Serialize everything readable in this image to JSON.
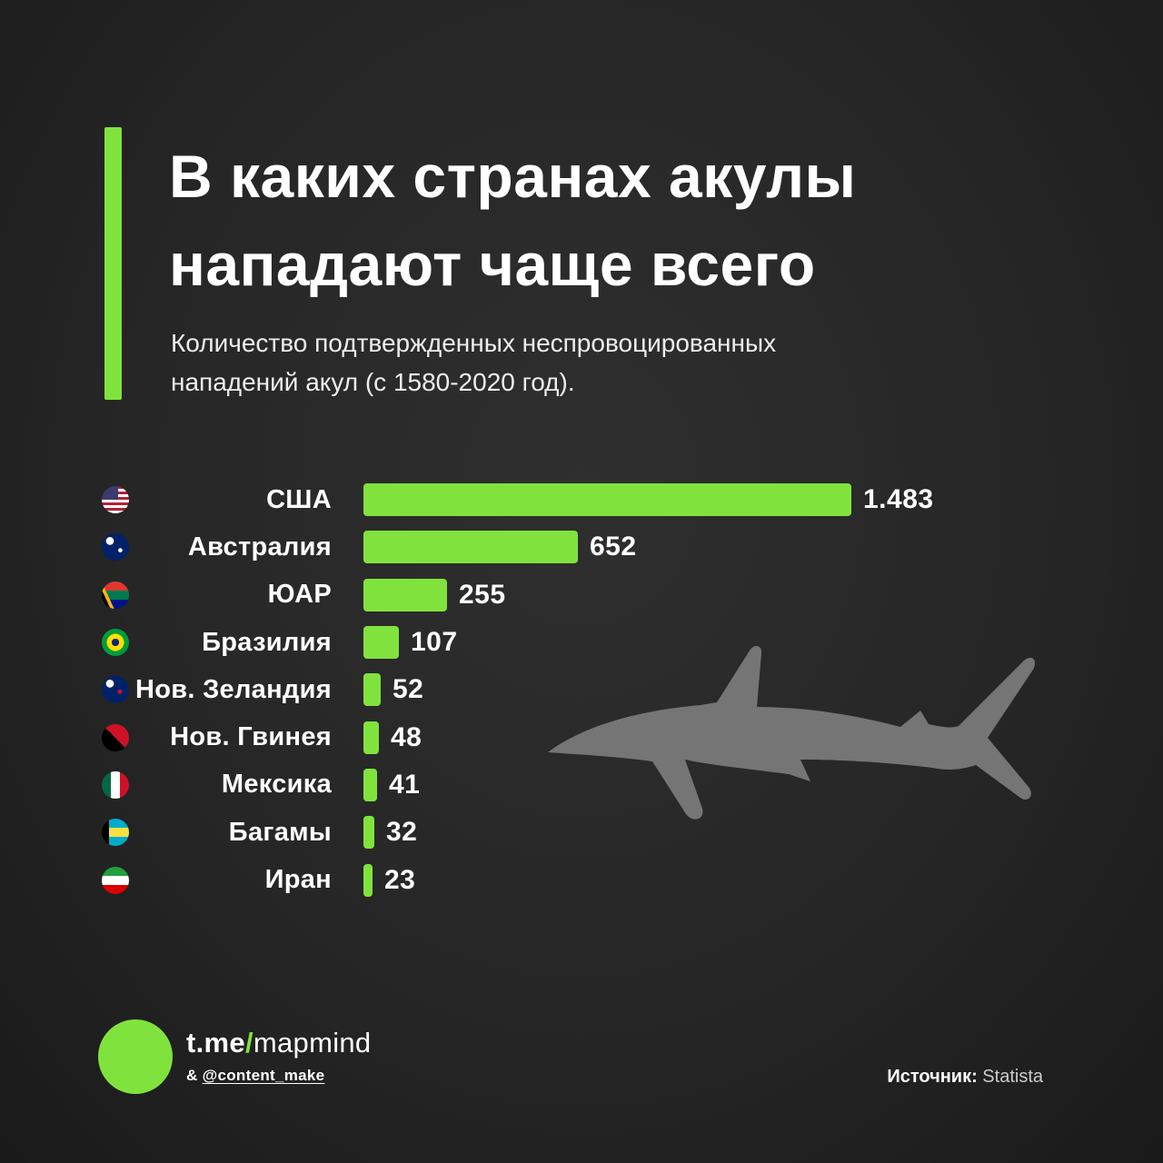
{
  "title": {
    "line1": "В каких странах акулы",
    "line2": "нападают чаще всего"
  },
  "subtitle": {
    "line1": "Количество подтвержденных неспровоцированных",
    "line2": "нападений акул (с 1580-2020 год)."
  },
  "chart_data": {
    "type": "bar",
    "orientation": "horizontal",
    "title": "В каких странах акулы нападают чаще всего",
    "subtitle": "Количество подтвержденных неспровоцированных нападений акул (с 1580-2020 год).",
    "categories": [
      "США",
      "Австралия",
      "ЮАР",
      "Бразилия",
      "Нов. Зеландия",
      "Нов. Гвинея",
      "Мексика",
      "Багамы",
      "Иран"
    ],
    "values": [
      1483,
      652,
      255,
      107,
      52,
      48,
      41,
      32,
      23
    ],
    "value_labels": [
      "1.483",
      "652",
      "255",
      "107",
      "52",
      "48",
      "41",
      "32",
      "23"
    ],
    "xlim": [
      0,
      1483
    ],
    "grid": false,
    "legend": false,
    "bar_color": "#80E33D",
    "source": "Statista",
    "flags": [
      {
        "icon": "flag-usa-icon",
        "css": "linear-gradient(#3c3b6e,#3c3b6e) left top/60% 50% no-repeat, repeating-linear-gradient(180deg,#b22234 0 3px,#fff 3px 6px)"
      },
      {
        "icon": "flag-australia-icon",
        "css": "radial-gradient(circle at 68% 62%, #fff 0 2px, transparent 2.6px), radial-gradient(circle at 30% 28%, #fff 0 4px, transparent 4.6px), #012169"
      },
      {
        "icon": "flag-south-africa-icon",
        "css": "linear-gradient(65deg,#000 0 22%,#ffb612 22% 31%,transparent 31%), linear-gradient(180deg,#de3831 0 33%,#007a4d 33% 66%,#001489 66%)"
      },
      {
        "icon": "flag-brazil-icon",
        "css": "radial-gradient(circle at 50% 50%, #002776 0 4px, #ffdf00 4px 9.5px, #009c3b 9.5px)"
      },
      {
        "icon": "flag-new-zealand-icon",
        "css": "radial-gradient(circle at 66% 58%, #c8102e 0 2.2px, transparent 2.8px), radial-gradient(circle at 30% 28%, #fff 0 4px, transparent 4.6px), #012169"
      },
      {
        "icon": "flag-papua-new-guinea-icon",
        "css": "linear-gradient(45deg, #000 0 50%, #ce1126 50%)"
      },
      {
        "icon": "flag-mexico-icon",
        "css": "linear-gradient(90deg,#006847 0 33%,#fff 33% 66%,#ce1126 66%)"
      },
      {
        "icon": "flag-bahamas-icon",
        "css": "linear-gradient(90deg, #000 0 26%, transparent 26%), linear-gradient(180deg,#00abc9 0 33%,#fae042 33% 66%,#00abc9 66%)"
      },
      {
        "icon": "flag-iran-icon",
        "css": "linear-gradient(180deg,#239f40 0 33%,#fff 33% 66%,#da0000 66%)"
      }
    ]
  },
  "footer": {
    "channel_prefix": "t.me",
    "channel_slash": "/",
    "channel_name": "mapmind",
    "secondary_prefix": "& ",
    "secondary_handle": "@content_make",
    "source_label": "Источник:",
    "source_value": "Statista"
  },
  "colors": {
    "accent": "#80E33D",
    "background": "#262626",
    "shark": "#757575",
    "text": "#FFFFFF"
  }
}
